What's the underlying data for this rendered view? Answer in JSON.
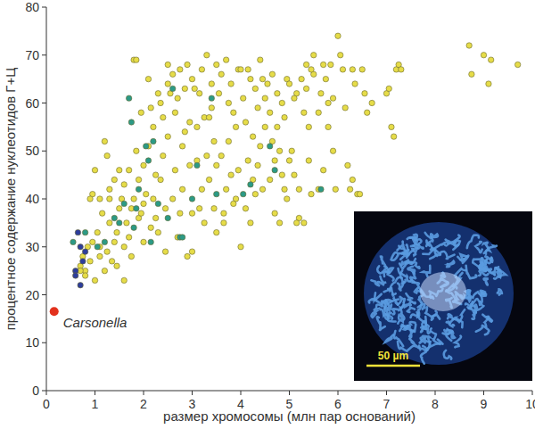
{
  "chart_data": {
    "type": "scatter",
    "x_label": "размер хромосомы (млн пар оснований)",
    "y_label": "процентное содержание нуклеотидов Г+Ц",
    "xlim": [
      0,
      10
    ],
    "xticks": [
      0,
      1,
      2,
      3,
      4,
      5,
      6,
      7,
      8,
      9,
      10
    ],
    "ylim": [
      0,
      80
    ],
    "yticks": [
      0,
      10,
      20,
      30,
      40,
      50,
      60,
      70,
      80
    ],
    "grid": false,
    "annotations": [
      "50 µm"
    ],
    "series": [
      {
        "color": "#e6dc48",
        "marker": "circle",
        "x": [
          0.7,
          0.75,
          0.8,
          0.85,
          0.9,
          0.95,
          1.0,
          0.9,
          1.0,
          0.8,
          0.95,
          0.7,
          1.05,
          1.1,
          1.1,
          1.15,
          1.2,
          1.25,
          1.3,
          1.3,
          1.35,
          1.4,
          1.45,
          1.5,
          1.2,
          1.25,
          1.4,
          1.1,
          1.5,
          1.45,
          1.3,
          1.6,
          1.6,
          1.65,
          1.7,
          1.7,
          1.75,
          1.8,
          1.85,
          1.8,
          1.85,
          1.9,
          1.9,
          1.95,
          2.0,
          2.0,
          1.75,
          1.6,
          1.55,
          1.95,
          2.0,
          2.05,
          2.1,
          2.15,
          2.2,
          2.25,
          2.3,
          2.35,
          2.4,
          2.45,
          2.5,
          2.1,
          2.2,
          2.3,
          2.4,
          2.45,
          2.5,
          2.15,
          2.35,
          2.25,
          2.5,
          2.6,
          2.65,
          2.7,
          2.75,
          2.8,
          2.85,
          2.9,
          2.95,
          3.0,
          2.6,
          2.7,
          2.8,
          2.9,
          2.95,
          3.0,
          2.55,
          2.75,
          2.85,
          3.0,
          2.65,
          3.05,
          3.1,
          3.15,
          3.2,
          3.25,
          3.3,
          3.35,
          3.4,
          3.45,
          3.5,
          3.1,
          3.2,
          3.3,
          3.4,
          3.45,
          3.5,
          3.15,
          3.35,
          3.25,
          3.5,
          3.55,
          3.6,
          3.65,
          3.7,
          3.75,
          3.8,
          3.85,
          3.9,
          3.95,
          4.0,
          3.6,
          3.7,
          3.8,
          3.9,
          4.0,
          3.65,
          3.75,
          3.85,
          3.95,
          4.05,
          4.1,
          4.15,
          4.2,
          4.25,
          4.3,
          4.35,
          4.4,
          4.45,
          4.5,
          4.1,
          4.2,
          4.3,
          4.4,
          4.5,
          4.15,
          4.35,
          4.45,
          4.25,
          4.55,
          4.6,
          4.65,
          4.7,
          4.75,
          4.8,
          4.85,
          4.9,
          4.95,
          5.0,
          4.6,
          4.7,
          4.8,
          4.9,
          5.0,
          4.65,
          4.85,
          4.95,
          4.75,
          5.05,
          5.1,
          5.15,
          5.2,
          5.25,
          5.3,
          5.35,
          5.4,
          5.45,
          5.5,
          5.1,
          5.2,
          5.3,
          5.4,
          5.5,
          5.15,
          5.35,
          5.45,
          5.6,
          5.7,
          5.75,
          5.8,
          5.85,
          5.9,
          5.95,
          6.0,
          5.6,
          5.7,
          5.8,
          5.9,
          6.05,
          5.65,
          6.1,
          6.15,
          6.2,
          6.25,
          6.3,
          6.35,
          6.4,
          6.45,
          6.5,
          6.6,
          6.7,
          6.55,
          6.3,
          7.0,
          7.05,
          7.1,
          7.15,
          7.2,
          7.25,
          7.3,
          8.7,
          8.75,
          9.0,
          9.1,
          9.15,
          9.7
        ],
        "values": [
          26,
          28,
          25,
          30,
          27,
          41,
          46,
          40,
          23,
          24,
          31,
          25,
          33,
          30,
          40,
          37,
          52,
          49,
          42,
          35,
          27,
          44,
          33,
          38,
          25,
          29,
          31,
          28,
          46,
          26,
          40,
          43,
          30,
          35,
          46,
          32,
          38,
          69,
          69,
          40,
          50,
          36,
          44,
          58,
          39,
          31,
          28,
          23,
          40,
          37,
          47,
          41,
          51,
          34,
          55,
          45,
          62,
          60,
          57,
          38,
          64,
          65,
          40,
          33,
          49,
          29,
          53,
          59,
          44,
          36,
          68,
          66,
          46,
          61,
          37,
          51,
          63,
          28,
          56,
          65,
          40,
          32,
          42,
          68,
          47,
          37,
          62,
          67,
          54,
          29,
          58,
          63,
          48,
          38,
          67,
          57,
          70,
          44,
          59,
          38,
          68,
          55,
          42,
          49,
          64,
          52,
          33,
          62,
          57,
          35,
          47,
          62,
          66,
          37,
          69,
          52,
          45,
          58,
          40,
          67,
          30,
          49,
          42,
          64,
          55,
          67,
          35,
          60,
          39,
          46,
          61,
          56,
          48,
          65,
          44,
          63,
          59,
          51,
          65,
          61,
          38,
          35,
          41,
          69,
          55,
          67,
          47,
          42,
          53,
          64,
          58,
          52,
          48,
          62,
          50,
          45,
          57,
          65,
          64,
          44,
          37,
          35,
          42,
          48,
          66,
          60,
          40,
          55,
          50,
          45,
          62,
          36,
          65,
          35,
          68,
          55,
          41,
          70,
          61,
          42,
          58,
          48,
          66,
          35,
          63,
          67,
          58,
          68,
          65,
          60,
          68,
          50,
          42,
          74,
          42,
          46,
          55,
          61,
          70,
          62,
          67,
          59,
          47,
          42,
          67,
          64,
          41,
          41,
          67,
          58,
          60,
          62,
          44,
          62,
          63,
          55,
          53,
          67,
          68,
          67,
          72,
          66,
          70,
          64,
          69,
          68
        ]
      },
      {
        "color": "#2b9a86",
        "marker": "circle",
        "x": [
          0.55,
          0.8,
          1.2,
          1.5,
          1.6,
          1.7,
          1.75,
          1.8,
          1.85,
          1.9,
          2.05,
          2.1,
          2.15,
          2.2,
          2.3,
          2.5,
          2.6,
          2.75,
          2.8,
          3.0,
          3.1,
          3.4,
          3.5,
          4.05,
          4.2,
          4.6,
          4.7,
          5.65,
          1.4,
          1.05
        ],
        "values": [
          31,
          33,
          31,
          35,
          39,
          61,
          56,
          34,
          38,
          42,
          51,
          48,
          31,
          52,
          39,
          36,
          63,
          32,
          32,
          40,
          47,
          61,
          41,
          41,
          43,
          51,
          46,
          42,
          36,
          30
        ]
      },
      {
        "color": "#2d3d9c",
        "marker": "circle",
        "x": [
          0.6,
          0.65,
          0.7,
          0.75,
          0.8,
          0.6,
          0.7
        ],
        "values": [
          25,
          33,
          22,
          27,
          29,
          24,
          30
        ]
      },
      {
        "name": "Carsonella",
        "color": "#e2311d",
        "marker": "circle",
        "x": [
          0.16
        ],
        "values": [
          16.5
        ]
      }
    ]
  }
}
